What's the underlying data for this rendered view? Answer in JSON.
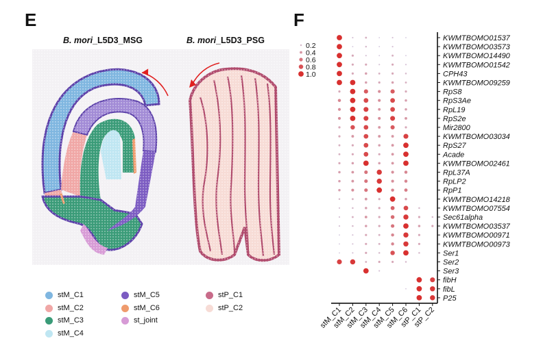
{
  "panels": {
    "left_letter": "E",
    "right_letter": "F"
  },
  "spatial": {
    "msg": {
      "species": "B. mori",
      "sample": "_L5D3_MSG"
    },
    "psg": {
      "species": "B. mori",
      "sample": "_L5D3_PSG"
    },
    "legend": [
      {
        "label": "stM_C1",
        "color": "#7fb6e0"
      },
      {
        "label": "stM_C2",
        "color": "#f0a7a6"
      },
      {
        "label": "stM_C3",
        "color": "#3a9b78"
      },
      {
        "label": "stM_C4",
        "color": "#bfe6f2"
      },
      {
        "label": "stM_C5",
        "color": "#7c5cc2"
      },
      {
        "label": "stM_C6",
        "color": "#ef9b6d"
      },
      {
        "label": "st_joint",
        "color": "#d79bd6"
      },
      {
        "label": "stP_C1",
        "color": "#c86b8a"
      },
      {
        "label": "stP_C2",
        "color": "#f7dcd6"
      }
    ]
  },
  "chart_data": {
    "type": "dotplot",
    "clusters": [
      "stM_C1",
      "stM_C2",
      "stM_C3",
      "stM_C4",
      "stM_C5",
      "stM_C6",
      "stP_C1",
      "stP_C2"
    ],
    "genes": [
      "KWMTBOMO01537",
      "KWMTBOMO03573",
      "KWMTBOMO14490",
      "KWMTBOMO01542",
      "CPH43",
      "KWMTBOMO09259",
      "RpS8",
      "RpS3Ae",
      "RpL19",
      "RpS2e",
      "Mir2800",
      "KWMTBOMO03034",
      "RpS27",
      "Acade",
      "KWMTBOMO02461",
      "RpL37A",
      "RpLP2",
      "RpP1",
      "KWMTBOMO14218",
      "KWMTBOMO07554",
      "Sec61alpha",
      "KWMTBOMO03537",
      "KWMTBOMO00971",
      "KWMTBOMO00973",
      "Ser1",
      "Ser2",
      "Ser3",
      "fibH",
      "fibL",
      "P25"
    ],
    "size_legend": [
      "0.2",
      "0.4",
      "0.6",
      "0.8",
      "1.0"
    ],
    "values": [
      [
        1.0,
        0.15,
        0.25,
        0.1,
        0.15,
        0.1,
        0,
        0
      ],
      [
        1.0,
        0.1,
        0.2,
        0.1,
        0.15,
        0,
        0,
        0
      ],
      [
        1.0,
        0.3,
        0.15,
        0.1,
        0.25,
        0.1,
        0,
        0
      ],
      [
        1.0,
        0.3,
        0.3,
        0.15,
        0.3,
        0.15,
        0,
        0
      ],
      [
        1.0,
        0.3,
        0.35,
        0.25,
        0.3,
        0.2,
        0,
        0
      ],
      [
        1.0,
        1.0,
        0.35,
        0.3,
        0.35,
        0.25,
        0,
        0
      ],
      [
        0.3,
        1.0,
        0.75,
        0.45,
        0.75,
        0.3,
        0,
        0
      ],
      [
        0.5,
        1.0,
        0.85,
        0.45,
        0.85,
        0.35,
        0,
        0
      ],
      [
        0.45,
        1.0,
        0.9,
        0.4,
        0.85,
        0.35,
        0,
        0
      ],
      [
        0.45,
        1.0,
        0.9,
        0.45,
        0.9,
        0.4,
        0,
        0
      ],
      [
        0.3,
        0.8,
        0.85,
        0.4,
        0.75,
        0.3,
        0,
        0
      ],
      [
        0.3,
        0.4,
        0.85,
        0.4,
        0.4,
        0.9,
        0,
        0
      ],
      [
        0.25,
        0.3,
        0.85,
        0.35,
        0.4,
        1.0,
        0,
        0
      ],
      [
        0.25,
        0.3,
        0.85,
        0.3,
        0.4,
        1.0,
        0,
        0
      ],
      [
        0.3,
        0.35,
        1.0,
        0.35,
        0.4,
        1.0,
        0,
        0
      ],
      [
        0.35,
        0.4,
        0.6,
        0.95,
        0.45,
        0.5,
        0,
        0
      ],
      [
        0.35,
        0.4,
        0.6,
        0.95,
        0.45,
        0.5,
        0,
        0
      ],
      [
        0.35,
        0.45,
        0.6,
        1.0,
        0.5,
        0.55,
        0,
        0
      ],
      [
        0.2,
        0.25,
        0.4,
        0.3,
        1.0,
        0.35,
        0,
        0
      ],
      [
        0.15,
        0.2,
        0.35,
        0.3,
        0.7,
        0.85,
        0.2,
        0
      ],
      [
        0.15,
        0.25,
        0.4,
        0.3,
        0.65,
        0.95,
        0.3,
        0.2
      ],
      [
        0.15,
        0.2,
        0.35,
        0.3,
        0.6,
        1.0,
        0.35,
        0.3
      ],
      [
        0.1,
        0.15,
        0.3,
        0.25,
        0.5,
        0.95,
        0.3,
        0
      ],
      [
        0.1,
        0.15,
        0.3,
        0.25,
        0.5,
        0.95,
        0.3,
        0
      ],
      [
        0.1,
        0.15,
        0.3,
        0.2,
        0.8,
        1.0,
        0.2,
        0
      ],
      [
        0.9,
        0.95,
        0.25,
        0.3,
        0.3,
        0.2,
        0,
        0
      ],
      [
        0,
        0,
        1.0,
        0.15,
        0,
        0,
        0,
        0
      ],
      [
        0,
        0,
        0,
        0,
        0,
        0,
        1.0,
        0.9
      ],
      [
        0,
        0,
        0,
        0,
        0,
        0.1,
        1.0,
        0.95
      ],
      [
        0,
        0,
        0,
        0,
        0,
        0,
        1.0,
        0.95
      ]
    ],
    "color_low": "#d6dbf2",
    "color_high": "#d8302f"
  }
}
